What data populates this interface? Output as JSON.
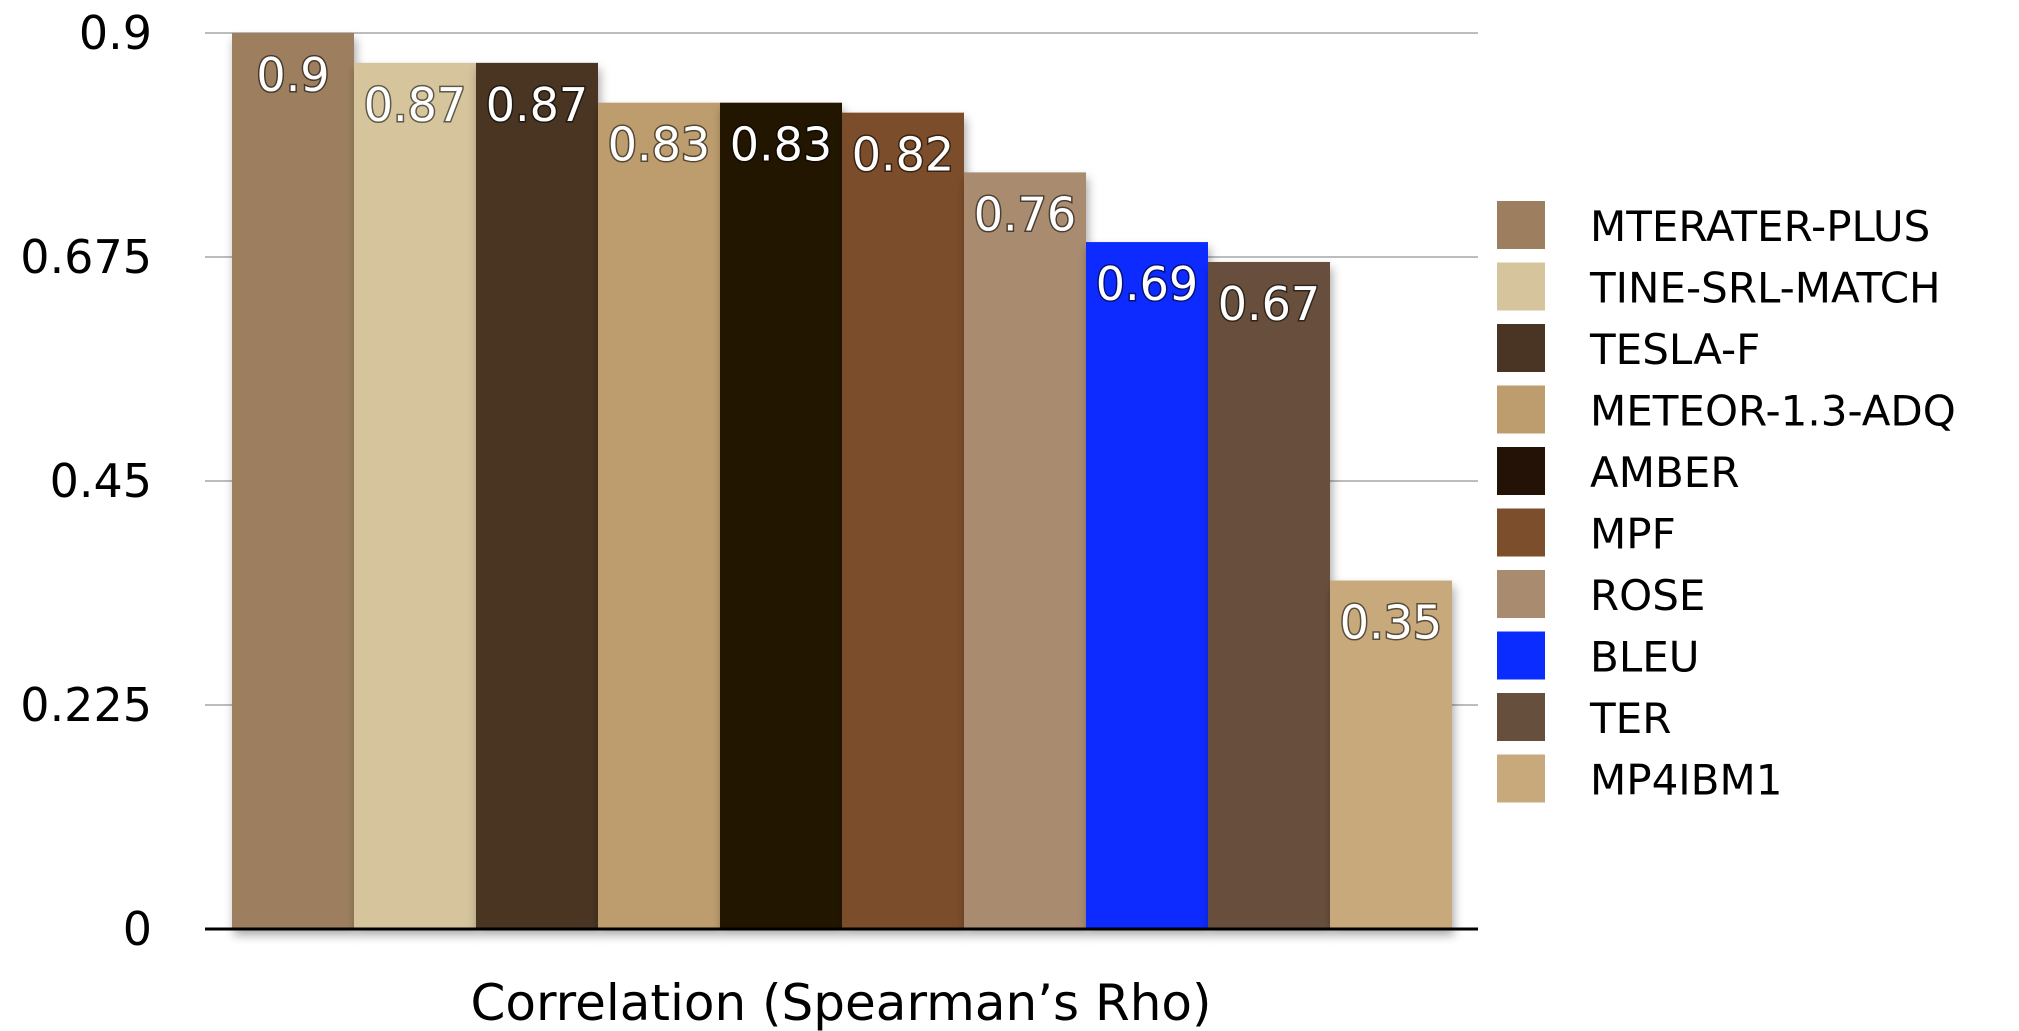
{
  "chart_data": {
    "type": "bar",
    "xlabel": "Correlation (Spearman’s Rho)",
    "ylabel": "",
    "ylim": [
      0,
      0.9
    ],
    "yticks": [
      "0",
      "0.225",
      "0.45",
      "0.675",
      "0.9"
    ],
    "grid": true,
    "legend_position": "right",
    "series": [
      {
        "name": "MTERATER-PLUS",
        "value": 0.9,
        "label": "0.9",
        "color": "#9d7f60"
      },
      {
        "name": "TINE-SRL-MATCH",
        "value": 0.87,
        "label": "0.87",
        "color": "#d5c49c"
      },
      {
        "name": "TESLA-F",
        "value": 0.87,
        "label": "0.87",
        "color": "#4a3424"
      },
      {
        "name": "METEOR-1.3-ADQ",
        "value": 0.83,
        "label": "0.83",
        "color": "#bd9d6e"
      },
      {
        "name": "AMBER",
        "value": 0.83,
        "label": "0.83",
        "color": "#241206"
      },
      {
        "name": "MPF",
        "value": 0.82,
        "label": "0.82",
        "color": "#7c4e2c"
      },
      {
        "name": "ROSE",
        "value": 0.76,
        "label": "0.76",
        "color": "#a98c70"
      },
      {
        "name": "BLEU",
        "value": 0.69,
        "label": "0.69",
        "color": "#0b2cff"
      },
      {
        "name": "TER",
        "value": 0.67,
        "label": "0.67",
        "color": "#674f3d"
      },
      {
        "name": "MP4IBM1",
        "value": 0.35,
        "label": "0.35",
        "color": "#c7a97c"
      }
    ]
  }
}
